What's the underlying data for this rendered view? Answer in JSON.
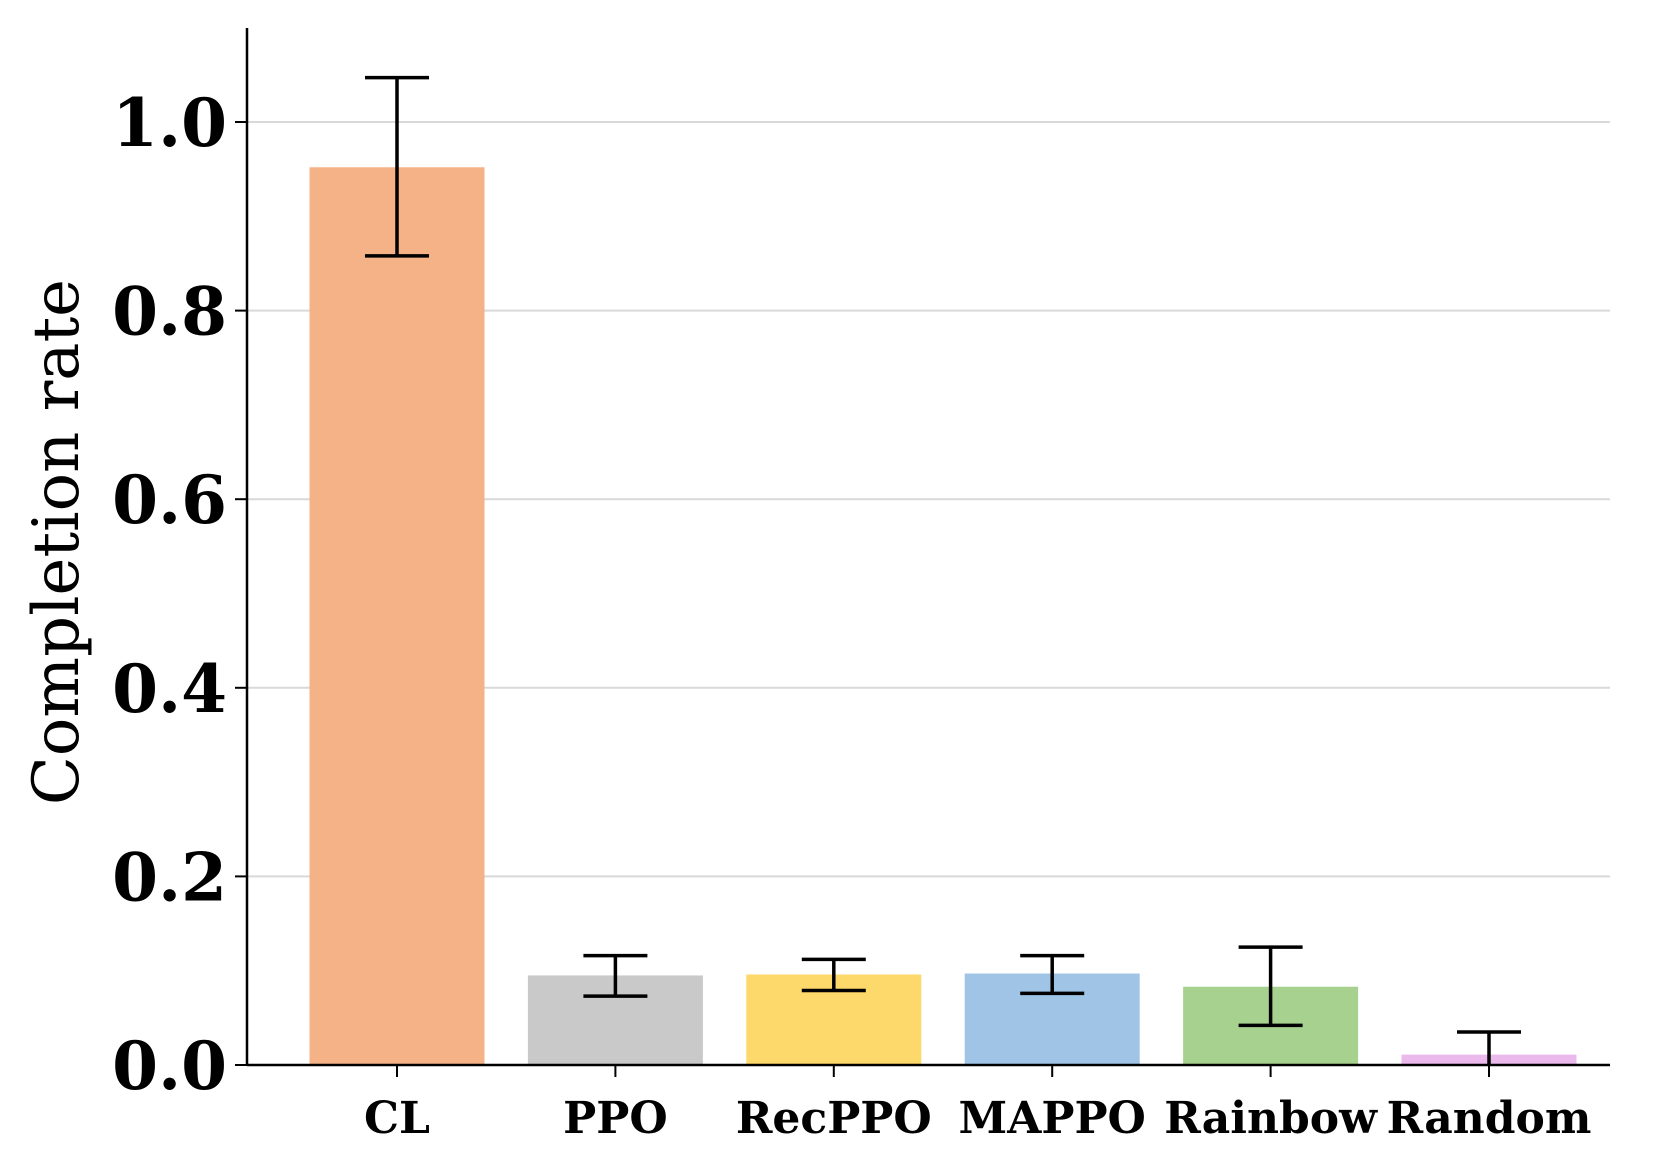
{
  "chart_data": {
    "type": "bar",
    "title": "",
    "xlabel": "",
    "ylabel": "Completion rate",
    "categories": [
      "CL",
      "PPO",
      "RecPPO",
      "MAPPO",
      "Rainbow",
      "Random"
    ],
    "values": [
      0.952,
      0.095,
      0.096,
      0.097,
      0.083,
      0.011
    ],
    "error_low": [
      0.858,
      0.073,
      0.079,
      0.076,
      0.042,
      0.0
    ],
    "error_high": [
      1.047,
      0.116,
      0.112,
      0.116,
      0.125,
      0.035
    ],
    "colors": [
      "#f4b286",
      "#c9c9c9",
      "#fdd86a",
      "#a0c4e5",
      "#a7d18e",
      "#ebb9eb"
    ],
    "error_color": "#000000",
    "ylim": [
      0.0,
      1.1
    ],
    "yticks": [
      "0.0",
      "0.2",
      "0.4",
      "0.6",
      "0.8",
      "1.0"
    ],
    "ytick_values": [
      0.0,
      0.2,
      0.4,
      0.6,
      0.8,
      1.0
    ],
    "grid": "y-major",
    "grid_color": "#d9d9d9"
  }
}
